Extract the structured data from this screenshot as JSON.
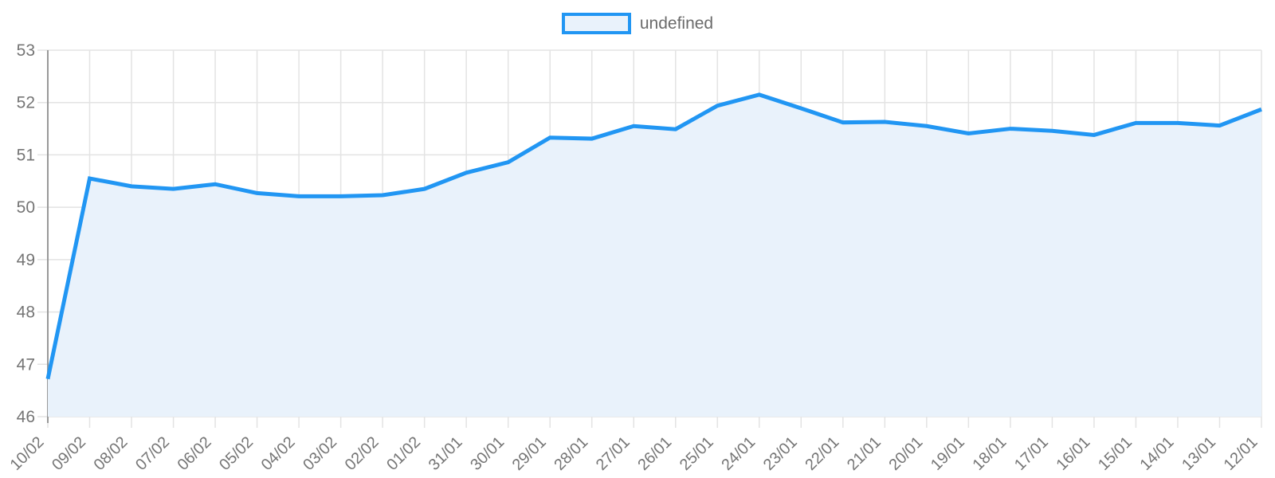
{
  "legend": {
    "label": "undefined"
  },
  "chart_data": {
    "type": "area",
    "title": "",
    "xlabel": "",
    "ylabel": "",
    "categories": [
      "10/02",
      "09/02",
      "08/02",
      "07/02",
      "06/02",
      "05/02",
      "04/02",
      "03/02",
      "02/02",
      "01/02",
      "31/01",
      "30/01",
      "29/01",
      "28/01",
      "27/01",
      "26/01",
      "25/01",
      "24/01",
      "23/01",
      "22/01",
      "21/01",
      "20/01",
      "19/01",
      "18/01",
      "17/01",
      "16/01",
      "15/01",
      "14/01",
      "13/01",
      "12/01"
    ],
    "series": [
      {
        "name": "undefined",
        "values": [
          46.72,
          50.55,
          50.4,
          50.35,
          50.44,
          50.27,
          50.21,
          50.21,
          50.23,
          50.35,
          50.66,
          50.86,
          51.33,
          51.31,
          51.55,
          51.49,
          51.94,
          52.15,
          51.89,
          51.62,
          51.63,
          51.55,
          51.41,
          51.5,
          51.46,
          51.38,
          51.61,
          51.61,
          51.56,
          51.87
        ]
      }
    ],
    "ylim": [
      46,
      53
    ],
    "y_ticks": [
      53,
      52,
      51,
      50,
      49,
      48,
      47,
      46
    ],
    "x_tick_rotation": -45,
    "grid": true,
    "legend_position": "top-center",
    "colors": {
      "line": "#2196f3",
      "area_fill": "#e9f2fb",
      "grid": "#e3e3e3",
      "axis_border": "#999999",
      "tick_label": "#757575",
      "legend_text": "#6b6b6b"
    }
  }
}
